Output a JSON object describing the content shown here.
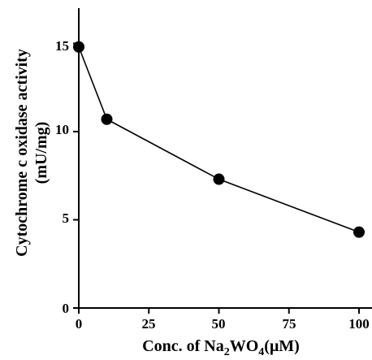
{
  "chart_data": {
    "type": "line",
    "x": [
      0,
      10,
      50,
      100
    ],
    "series": [
      {
        "values": [
          14.8,
          10.7,
          7.3,
          4.3
        ],
        "marker": "filled-circle",
        "color": "#000000"
      }
    ],
    "xlim": [
      0,
      100
    ],
    "ylim": [
      0,
      17
    ],
    "xticks": [
      "0",
      "25",
      "50",
      "75",
      "100"
    ],
    "yticks": [
      "0",
      "5",
      "10",
      "15"
    ],
    "ylabel_line1": "Cytochrome c oxidase activity",
    "ylabel_line2": "(mU/mg)",
    "xlabel_prefix": "Conc. of Na",
    "xlabel_sub1": "2",
    "xlabel_mid": "WO",
    "xlabel_sub2": "4",
    "xlabel_suffix": "(μM)",
    "grid": false
  }
}
